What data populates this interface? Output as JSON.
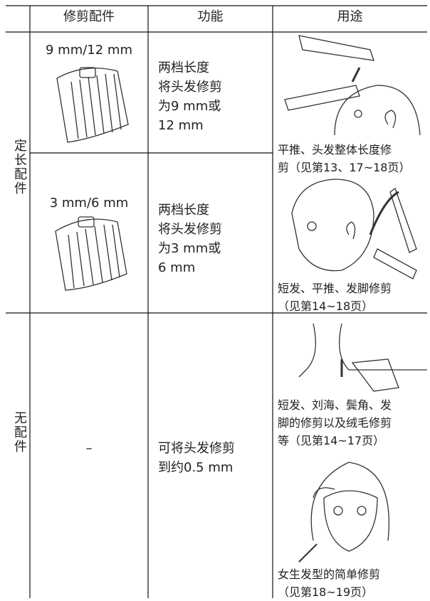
{
  "table": {
    "header": [
      "修剪配件",
      "功能",
      "用途"
    ],
    "groups": [
      {
        "label": "定长配件",
        "rows": [
          {
            "attachment": "9 mm/12 mm",
            "function": "两档长度\n将头发修剪\n为9 mm或\n12 mm"
          },
          {
            "attachment": "3 mm/6 mm",
            "function": "两档长度\n将头发修剪\n为3 mm或\n6 mm"
          }
        ],
        "usage": [
          "平推、头发整体长度修\n剪（见第13、17~18页）",
          "短发、平推、发脚修剪\n（见第14~18页）"
        ]
      },
      {
        "label": "无配件",
        "rows": [
          {
            "attachment": "–",
            "function": "可将头发修剪\n到约0.5 mm"
          }
        ],
        "usage": [
          "短发、刘海、鬓角、发\n脚的修剪以及绒毛修剪\n等（见第14~17页）",
          "女生发型的简单修剪\n（见第18~19页）"
        ]
      }
    ]
  }
}
